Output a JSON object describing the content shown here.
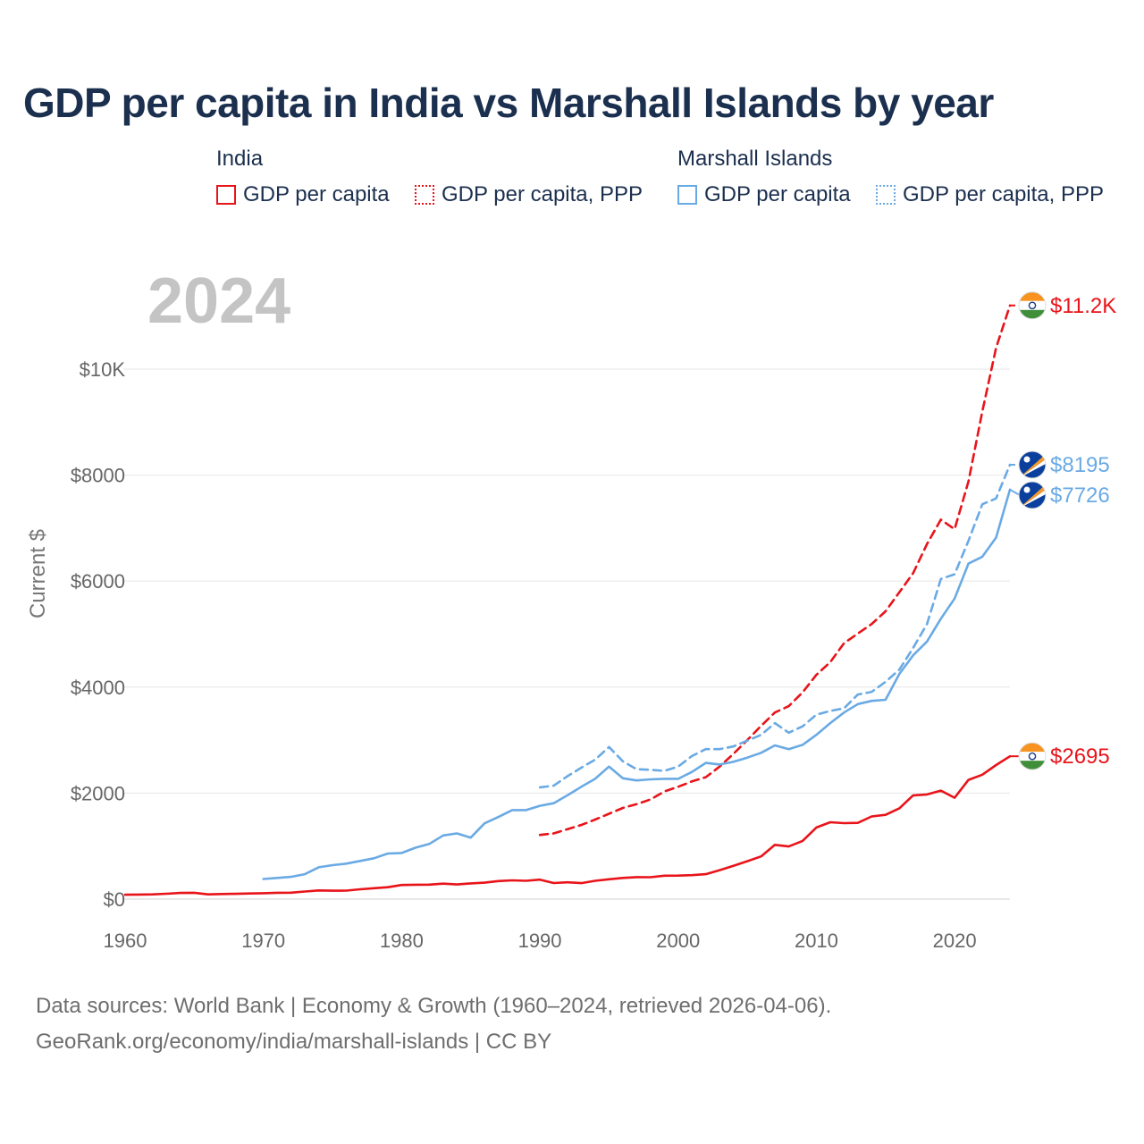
{
  "title": "GDP per capita in India vs Marshall Islands by year",
  "legend": {
    "groups": [
      {
        "name": "India",
        "items": [
          {
            "label": "GDP per capita",
            "style": "solid",
            "color": "#e8141a"
          },
          {
            "label": "GDP per capita, PPP",
            "style": "dotted",
            "color": "#e8141a"
          }
        ]
      },
      {
        "name": "Marshall Islands",
        "items": [
          {
            "label": "GDP per capita",
            "style": "solid",
            "color": "#6aaae4"
          },
          {
            "label": "GDP per capita, PPP",
            "style": "dotted",
            "color": "#6aaae4"
          }
        ]
      }
    ]
  },
  "year_watermark": "2024",
  "chart_data": {
    "type": "line",
    "title": "GDP per capita in India vs Marshall Islands by year",
    "xlabel": "",
    "ylabel": "Current $",
    "xlim": [
      1960,
      2024
    ],
    "ylim": [
      0,
      11500
    ],
    "grid": true,
    "x_ticks": [
      {
        "value": 1960,
        "label": "1960"
      },
      {
        "value": 1970,
        "label": "1970"
      },
      {
        "value": 1980,
        "label": "1980"
      },
      {
        "value": 1990,
        "label": "1990"
      },
      {
        "value": 2000,
        "label": "2000"
      },
      {
        "value": 2010,
        "label": "2010"
      },
      {
        "value": 2020,
        "label": "2020"
      }
    ],
    "y_ticks": [
      {
        "value": 0,
        "label": "$0"
      },
      {
        "value": 2000,
        "label": "$2000"
      },
      {
        "value": 4000,
        "label": "$4000"
      },
      {
        "value": 6000,
        "label": "$6000"
      },
      {
        "value": 8000,
        "label": "$8000"
      },
      {
        "value": 10000,
        "label": "$10K"
      }
    ],
    "series": [
      {
        "name": "India GDP per capita",
        "country": "India",
        "color": "#e8141a",
        "dash": "solid",
        "end_label": "$2695",
        "flag": "india",
        "x": [
          1960,
          1961,
          1962,
          1963,
          1964,
          1965,
          1966,
          1967,
          1968,
          1969,
          1970,
          1971,
          1972,
          1973,
          1974,
          1975,
          1976,
          1977,
          1978,
          1979,
          1980,
          1981,
          1982,
          1983,
          1984,
          1985,
          1986,
          1987,
          1988,
          1989,
          1990,
          1991,
          1992,
          1993,
          1994,
          1995,
          1996,
          1997,
          1998,
          1999,
          2000,
          2001,
          2002,
          2003,
          2004,
          2005,
          2006,
          2007,
          2008,
          2009,
          2010,
          2011,
          2012,
          2013,
          2014,
          2015,
          2016,
          2017,
          2018,
          2019,
          2020,
          2021,
          2022,
          2023,
          2024
        ],
        "values": [
          83,
          86,
          89,
          101,
          116,
          119,
          90,
          96,
          100,
          107,
          112,
          119,
          122,
          143,
          163,
          158,
          161,
          186,
          206,
          224,
          266,
          271,
          274,
          292,
          277,
          296,
          310,
          340,
          354,
          346,
          368,
          303,
          317,
          301,
          346,
          374,
          400,
          415,
          413,
          441,
          443,
          452,
          471,
          547,
          627,
          715,
          806,
          1023,
          993,
          1097,
          1350,
          1450,
          1434,
          1438,
          1560,
          1590,
          1714,
          1958,
          1974,
          2047,
          1913,
          2250,
          2347,
          2530,
          2695
        ]
      },
      {
        "name": "India GDP per capita, PPP",
        "country": "India",
        "color": "#e8141a",
        "dash": "dashed",
        "end_label": "$11.2K",
        "flag": "india",
        "x": [
          1990,
          1991,
          1992,
          1993,
          1994,
          1995,
          1996,
          1997,
          1998,
          1999,
          2000,
          2001,
          2002,
          2003,
          2004,
          2005,
          2006,
          2007,
          2008,
          2009,
          2010,
          2011,
          2012,
          2013,
          2014,
          2015,
          2016,
          2017,
          2018,
          2019,
          2020,
          2021,
          2022,
          2023,
          2024
        ],
        "values": [
          1210,
          1240,
          1320,
          1400,
          1500,
          1610,
          1720,
          1790,
          1880,
          2030,
          2120,
          2220,
          2300,
          2500,
          2740,
          3000,
          3270,
          3520,
          3640,
          3900,
          4230,
          4470,
          4830,
          5010,
          5190,
          5430,
          5790,
          6150,
          6700,
          7160,
          6980,
          7880,
          9200,
          10400,
          11200
        ]
      },
      {
        "name": "Marshall Islands GDP per capita",
        "country": "Marshall Islands",
        "color": "#6aaae4",
        "dash": "solid",
        "end_label": "$7726",
        "flag": "marshall-islands",
        "x": [
          1970,
          1971,
          1972,
          1973,
          1974,
          1975,
          1976,
          1977,
          1978,
          1979,
          1980,
          1981,
          1982,
          1983,
          1984,
          1985,
          1986,
          1987,
          1988,
          1989,
          1990,
          1991,
          1992,
          1993,
          1994,
          1995,
          1996,
          1997,
          1998,
          1999,
          2000,
          2001,
          2002,
          2003,
          2004,
          2005,
          2006,
          2007,
          2008,
          2009,
          2010,
          2011,
          2012,
          2013,
          2014,
          2015,
          2016,
          2017,
          2018,
          2019,
          2020,
          2021,
          2022,
          2023,
          2024
        ],
        "values": [
          380,
          400,
          420,
          470,
          600,
          640,
          670,
          720,
          770,
          860,
          870,
          970,
          1040,
          1200,
          1240,
          1160,
          1430,
          1550,
          1680,
          1680,
          1760,
          1810,
          1960,
          2120,
          2270,
          2500,
          2280,
          2240,
          2260,
          2270,
          2270,
          2400,
          2570,
          2540,
          2590,
          2670,
          2760,
          2900,
          2830,
          2910,
          3100,
          3320,
          3520,
          3680,
          3740,
          3760,
          4250,
          4600,
          4860,
          5290,
          5670,
          6330,
          6460,
          6820,
          7726
        ]
      },
      {
        "name": "Marshall Islands GDP per capita, PPP",
        "country": "Marshall Islands",
        "color": "#6aaae4",
        "dash": "dashed",
        "end_label": "$8195",
        "flag": "marshall-islands",
        "x": [
          1990,
          1991,
          1992,
          1993,
          1994,
          1995,
          1996,
          1997,
          1998,
          1999,
          2000,
          2001,
          2002,
          2003,
          2004,
          2005,
          2006,
          2007,
          2008,
          2009,
          2010,
          2011,
          2012,
          2013,
          2014,
          2015,
          2016,
          2017,
          2018,
          2019,
          2020,
          2021,
          2022,
          2023,
          2024
        ],
        "values": [
          2110,
          2140,
          2320,
          2480,
          2630,
          2870,
          2600,
          2450,
          2440,
          2420,
          2500,
          2700,
          2830,
          2830,
          2880,
          2990,
          3100,
          3320,
          3140,
          3260,
          3480,
          3550,
          3600,
          3860,
          3910,
          4100,
          4330,
          4740,
          5190,
          6040,
          6130,
          6760,
          7450,
          7560,
          8195
        ]
      }
    ]
  },
  "footer": {
    "sources": "Data sources: World Bank | Economy & Growth (1960–2024, retrieved 2026-04-06).",
    "credit": "GeoRank.org/economy/india/marshall-islands | CC BY"
  }
}
